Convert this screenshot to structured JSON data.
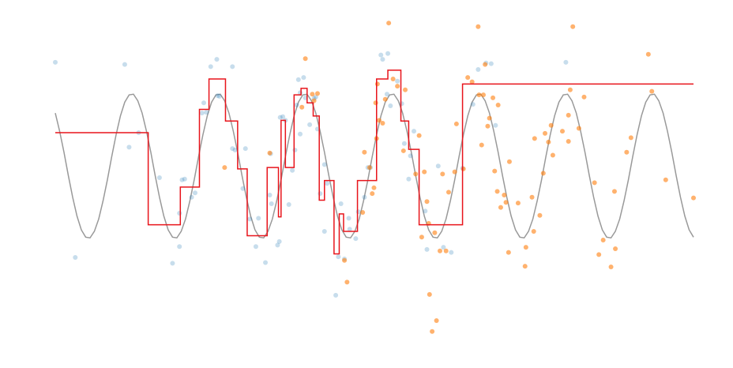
{
  "chart_data": {
    "type": "line",
    "xlim": [
      0,
      7.35
    ],
    "ylim": [
      -2.5,
      2.07
    ],
    "series": [
      {
        "type": "line",
        "color": "#999999",
        "width": 1.5,
        "x": [
          0,
          0.05,
          0.1,
          0.15,
          0.2,
          0.25,
          0.3,
          0.35,
          0.4,
          0.45,
          0.5,
          0.55,
          0.6,
          0.65,
          0.7,
          0.75,
          0.8,
          0.85,
          0.9,
          0.95,
          1,
          1.05,
          1.1,
          1.15,
          1.2,
          1.25,
          1.3,
          1.35,
          1.4,
          1.45,
          1.5,
          1.55,
          1.6,
          1.65,
          1.7,
          1.75,
          1.8,
          1.85,
          1.9,
          1.95,
          2,
          2.05,
          2.1,
          2.15,
          2.2,
          2.25,
          2.3,
          2.35,
          2.4,
          2.45,
          2.5,
          2.55,
          2.6,
          2.65,
          2.7,
          2.75,
          2.8,
          2.85,
          2.9,
          2.95,
          3,
          3.05,
          3.1,
          3.15,
          3.2,
          3.25,
          3.3,
          3.35,
          3.4,
          3.45,
          3.5,
          3.55,
          3.6,
          3.65,
          3.7,
          3.75,
          3.8,
          3.85,
          3.9,
          3.95,
          4,
          4.05,
          4.1,
          4.15,
          4.2,
          4.25,
          4.3,
          4.35,
          4.4,
          4.45,
          4.5,
          4.55,
          4.6,
          4.65,
          4.7,
          4.75,
          4.8,
          4.85,
          4.9,
          4.95,
          5,
          5.05,
          5.1,
          5.15,
          5.2,
          5.25,
          5.3,
          5.35,
          5.4,
          5.45,
          5.5,
          5.55,
          5.6,
          5.65,
          5.7,
          5.75,
          5.8,
          5.85,
          5.9,
          5.95,
          6,
          6.05,
          6.1,
          6.15,
          6.2,
          6.25,
          6.3,
          6.35,
          6.4,
          6.45,
          6.5,
          6.55,
          6.6,
          6.65,
          6.7,
          6.75,
          6.8,
          6.85,
          6.9,
          6.95,
          7,
          7.05,
          7.1,
          7.15,
          7.2,
          7.25,
          7.3,
          7.35
        ],
        "values": [
          0.73,
          0.48,
          0.19,
          -0.13,
          -0.43,
          -0.69,
          -0.88,
          -0.98,
          -0.99,
          -0.9,
          -0.73,
          -0.48,
          -0.19,
          0.13,
          0.43,
          0.69,
          0.88,
          0.98,
          0.99,
          0.9,
          0.73,
          0.48,
          0.19,
          -0.13,
          -0.43,
          -0.69,
          -0.88,
          -0.98,
          -0.99,
          -0.9,
          -0.73,
          -0.48,
          -0.19,
          0.13,
          0.43,
          0.69,
          0.88,
          0.98,
          0.99,
          0.9,
          0.73,
          0.48,
          0.19,
          -0.13,
          -0.43,
          -0.69,
          -0.88,
          -0.98,
          -0.99,
          -0.9,
          -0.73,
          -0.48,
          -0.19,
          0.13,
          0.43,
          0.69,
          0.88,
          0.98,
          0.99,
          0.9,
          0.73,
          0.48,
          0.19,
          -0.13,
          -0.43,
          -0.69,
          -0.88,
          -0.98,
          -0.99,
          -0.9,
          -0.73,
          -0.48,
          -0.19,
          0.13,
          0.43,
          0.69,
          0.88,
          0.98,
          0.99,
          0.9,
          0.73,
          0.48,
          0.19,
          -0.13,
          -0.43,
          -0.69,
          -0.88,
          -0.98,
          -0.99,
          -0.9,
          -0.73,
          -0.48,
          -0.19,
          0.13,
          0.43,
          0.69,
          0.88,
          0.98,
          0.99,
          0.9,
          0.73,
          0.48,
          0.19,
          -0.13,
          -0.43,
          -0.69,
          -0.88,
          -0.98,
          -0.99,
          -0.9,
          -0.73,
          -0.48,
          -0.19,
          0.13,
          0.43,
          0.69,
          0.88,
          0.98,
          0.99,
          0.9,
          0.73,
          0.48,
          0.19,
          -0.13,
          -0.43,
          -0.69,
          -0.88,
          -0.98,
          -0.99,
          -0.9,
          -0.73,
          -0.48,
          -0.19,
          0.13,
          0.43,
          0.69,
          0.88,
          0.98,
          0.99,
          0.9,
          0.73,
          0.48,
          0.19,
          -0.13,
          -0.43,
          -0.69,
          -0.88,
          -0.98
        ]
      },
      {
        "type": "scatter",
        "color": "#1f77b4",
        "opacity": 0.25,
        "x": [
          0,
          0.8,
          0.85,
          0.96,
          0.23,
          1.2,
          1.35,
          1.43,
          1.46,
          1.49,
          1.57,
          1.61,
          1.43,
          1.69,
          1.71,
          1.74,
          1.79,
          1.86,
          1.87,
          1.89,
          2.04,
          2.04,
          2.07,
          2.16,
          2.19,
          2.24,
          2.31,
          2.34,
          2.42,
          2.47,
          2.48,
          2.49,
          2.56,
          2.58,
          2.59,
          2.62,
          2.65,
          2.69,
          2.73,
          2.76,
          2.78,
          2.8,
          2.82,
          2.82,
          2.86,
          2.88,
          2.93,
          2.98,
          3,
          3.02,
          3.05,
          3.1,
          3.1,
          3.13,
          3.23,
          3.26,
          3.29,
          3.33,
          3.38,
          3.39,
          3.46,
          3.49,
          3.56,
          3.6,
          3.63,
          3.75,
          3.77,
          3.83,
          3.82,
          3.86,
          3.94,
          3.99,
          4.02,
          4.07,
          4.09,
          4.13,
          4.26,
          4.28,
          4.41,
          4.47,
          4.56,
          4.69,
          4.81,
          4.87,
          4.96,
          5.02,
          5.07,
          5.88
        ],
        "values": [
          1.43,
          1.4,
          0.26,
          0.46,
          -1.26,
          -0.16,
          -1.34,
          -1.11,
          -0.19,
          -0.18,
          -0.43,
          -0.37,
          -0.65,
          0.73,
          0.87,
          0.74,
          1.37,
          1.47,
          0.97,
          0.96,
          1.37,
          0.24,
          0.22,
          -0.31,
          0.24,
          -0.73,
          -1.11,
          -0.72,
          -1.33,
          -0.4,
          0.17,
          -0.52,
          -1.09,
          -1.04,
          0.67,
          0.68,
          0.63,
          -0.53,
          -0.06,
          0.22,
          0.84,
          1.19,
          0.44,
          1.01,
          1.22,
          0.94,
          0.57,
          0.93,
          0.95,
          0.51,
          -0.38,
          0.02,
          -0.9,
          -0.24,
          -1.78,
          -1.25,
          -0.52,
          -1.28,
          -0.72,
          -0.87,
          -1,
          -0.63,
          -0.43,
          -0.02,
          -0.02,
          1.53,
          1.47,
          1.55,
          0.99,
          0.83,
          1.17,
          0.86,
          0.31,
          -0.18,
          0.14,
          0.48,
          -0.62,
          -1.15,
          0,
          -1.12,
          -1.19,
          -0.03,
          0.85,
          1.33,
          1.42,
          1.41,
          0.56,
          1.43
        ]
      },
      {
        "type": "scatter",
        "color": "#ff7f0e",
        "opacity": 0.6,
        "x": [
          1.95,
          2.47,
          2.88,
          2.84,
          2.96,
          2.98,
          3.02,
          3.33,
          3.36,
          3.54,
          3.56,
          3.62,
          3.65,
          3.67,
          3.7,
          3.69,
          3.71,
          3.73,
          3.77,
          3.8,
          3.84,
          3.89,
          3.94,
          4.01,
          4.03,
          4.15,
          4.19,
          4.22,
          4.25,
          4.3,
          4.31,
          4.34,
          4.39,
          4.28,
          4.37,
          4.43,
          4.46,
          4.5,
          4.53,
          4.6,
          4.62,
          4.7,
          4.75,
          4.8,
          4.87,
          4.88,
          4.91,
          4.93,
          4.95,
          4.98,
          5,
          5.04,
          5.06,
          5.09,
          5.1,
          5.13,
          5.17,
          5.19,
          5.23,
          5.22,
          5.33,
          5.42,
          5.41,
          5.49,
          5.51,
          5.52,
          5.58,
          5.62,
          5.64,
          5.68,
          5.71,
          5.73,
          5.84,
          5.91,
          5.91,
          5.93,
          5.96,
          6.03,
          6.09,
          6.21,
          6.26,
          6.31,
          6.4,
          6.45,
          6.44,
          6.58,
          6.63,
          6.83,
          6.87,
          7.03,
          7.35
        ],
        "values": [
          -0.02,
          0.18,
          1.48,
          0.81,
          0.99,
          0.9,
          1,
          -1.3,
          -1.6,
          -0.64,
          0.19,
          -0.02,
          -0.38,
          -0.3,
          0.38,
          0.87,
          1.13,
          0.63,
          0.59,
          0.92,
          1.97,
          1.2,
          1.1,
          0.21,
          1.05,
          -0.11,
          0.42,
          -0.98,
          -0.08,
          -0.79,
          -1.77,
          -2.28,
          -2.13,
          -0.49,
          -0.92,
          -1.17,
          -0.11,
          -1.17,
          -0.36,
          -0.08,
          0.58,
          -0.04,
          1.22,
          1.16,
          1.92,
          0.98,
          0.29,
          0.98,
          1.4,
          0.55,
          0.66,
          0.94,
          -0.07,
          -0.35,
          0.84,
          -0.57,
          -0.4,
          -0.5,
          0.06,
          -1.19,
          -0.51,
          -1.12,
          -1.38,
          -0.43,
          -0.9,
          0.38,
          -0.68,
          -0.1,
          0.45,
          0.33,
          0.56,
          0.15,
          0.48,
          0.34,
          0.7,
          1.05,
          1.92,
          0.52,
          0.95,
          -0.23,
          -1.22,
          -1.02,
          -1.39,
          -1.14,
          -0.35,
          0.19,
          0.39,
          1.54,
          1.03,
          -0.19,
          -0.44
        ]
      },
      {
        "type": "line",
        "color": "#e8141b",
        "width": 1.5,
        "x": [
          0,
          1.07,
          1.07,
          1.44,
          1.44,
          1.66,
          1.66,
          1.77,
          1.77,
          1.96,
          1.96,
          2.1,
          2.1,
          2.21,
          2.21,
          2.44,
          2.44,
          2.57,
          2.57,
          2.6,
          2.6,
          2.65,
          2.65,
          2.75,
          2.75,
          2.83,
          2.83,
          2.9,
          2.9,
          2.97,
          2.97,
          3.04,
          3.04,
          3.1,
          3.1,
          3.21,
          3.21,
          3.27,
          3.27,
          3.32,
          3.32,
          3.48,
          3.48,
          3.7,
          3.7,
          3.83,
          3.83,
          3.98,
          3.98,
          4.07,
          4.07,
          4.19,
          4.19,
          4.69,
          4.69,
          7.35
        ],
        "values": [
          0.46,
          0.46,
          -0.81,
          -0.81,
          -0.29,
          -0.29,
          0.78,
          0.78,
          1.2,
          1.2,
          0.62,
          0.62,
          -0.04,
          -0.04,
          -0.96,
          -0.96,
          -0.02,
          -0.02,
          -0.7,
          -0.7,
          0.63,
          0.63,
          -0.02,
          -0.02,
          0.98,
          0.98,
          1.07,
          1.07,
          0.87,
          0.87,
          0.69,
          0.69,
          -0.47,
          -0.47,
          -0.2,
          -0.2,
          -1.21,
          -1.21,
          -0.66,
          -0.66,
          -0.9,
          -0.9,
          -0.2,
          -0.2,
          1.2,
          1.2,
          1.32,
          1.32,
          0.62,
          0.62,
          0.23,
          0.23,
          -0.81,
          -0.81,
          1.13,
          1.13
        ]
      }
    ]
  }
}
